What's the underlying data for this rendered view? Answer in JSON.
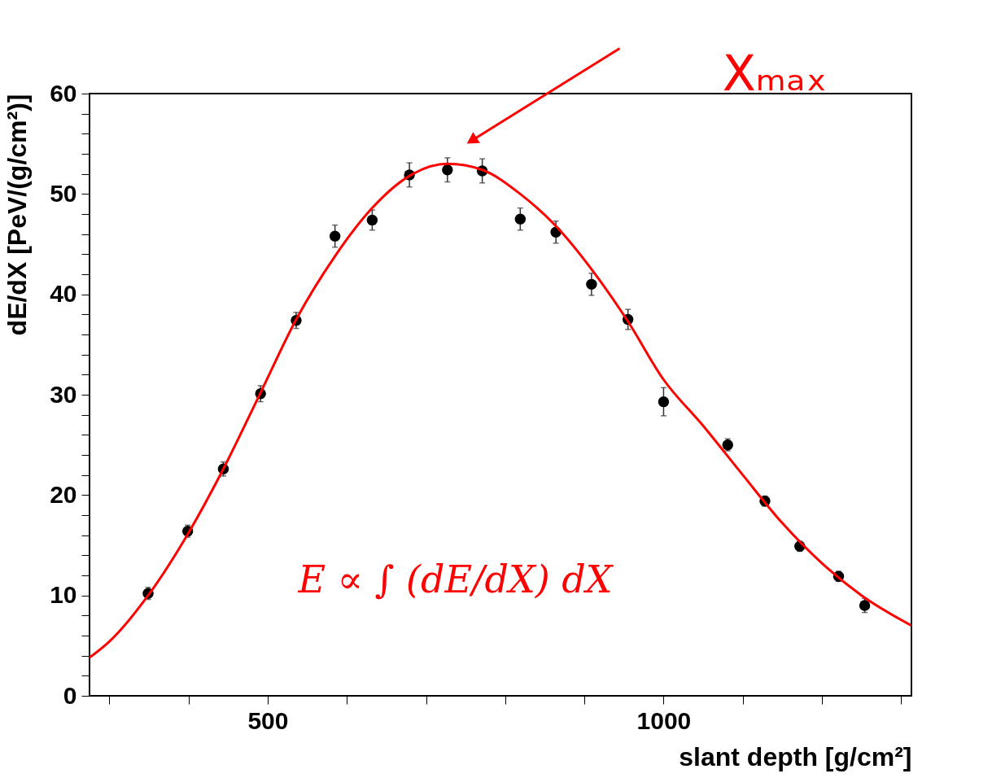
{
  "chart_data": {
    "type": "scatter",
    "xlabel": "slant depth [g/cm²]",
    "ylabel": "dE/dX [PeV/(g/cm²)]",
    "xlim": [
      275,
      1313
    ],
    "ylim": [
      0,
      60
    ],
    "xticks": [
      {
        "value": 300,
        "label": null
      },
      {
        "value": 400,
        "label": null
      },
      500,
      {
        "value": 600,
        "label": null
      },
      {
        "value": 700,
        "label": null
      },
      {
        "value": 800,
        "label": null
      },
      {
        "value": 900,
        "label": null
      },
      1000,
      {
        "value": 1100,
        "label": null
      },
      {
        "value": 1200,
        "label": null
      },
      {
        "value": 1300,
        "label": null
      }
    ],
    "yticks": [
      0,
      {
        "value": 2,
        "label": null
      },
      {
        "value": 4,
        "label": null
      },
      {
        "value": 6,
        "label": null
      },
      {
        "value": 8,
        "label": null
      },
      10,
      {
        "value": 12,
        "label": null
      },
      {
        "value": 14,
        "label": null
      },
      {
        "value": 16,
        "label": null
      },
      {
        "value": 18,
        "label": null
      },
      20,
      {
        "value": 22,
        "label": null
      },
      {
        "value": 24,
        "label": null
      },
      {
        "value": 26,
        "label": null
      },
      {
        "value": 28,
        "label": null
      },
      30,
      {
        "value": 32,
        "label": null
      },
      {
        "value": 34,
        "label": null
      },
      {
        "value": 36,
        "label": null
      },
      {
        "value": 38,
        "label": null
      },
      40,
      {
        "value": 42,
        "label": null
      },
      {
        "value": 44,
        "label": null
      },
      {
        "value": 46,
        "label": null
      },
      {
        "value": 48,
        "label": null
      },
      50,
      {
        "value": 52,
        "label": null
      },
      {
        "value": 54,
        "label": null
      },
      {
        "value": 56,
        "label": null
      },
      {
        "value": 58,
        "label": null
      },
      60
    ],
    "grid": false,
    "annotations": [
      "Xₘₐₓ",
      "E ∝ ∫ (dE/dX) dX"
    ],
    "series": [
      {
        "marker": "circle",
        "color": "#000000",
        "x": [
          349,
          399,
          444,
          491,
          536,
          585,
          632,
          679,
          727,
          771,
          819,
          864,
          909,
          955,
          1000,
          1081,
          1128,
          1172,
          1221,
          1254
        ],
        "values": [
          10.2,
          16.4,
          22.6,
          30.1,
          37.4,
          45.8,
          47.4,
          51.9,
          52.4,
          52.3,
          47.5,
          46.2,
          41.0,
          37.5,
          29.3,
          25.0,
          19.4,
          14.9,
          11.9,
          9.0
        ],
        "errors": [
          0.6,
          0.6,
          0.7,
          0.8,
          0.8,
          1.1,
          1.0,
          1.2,
          1.2,
          1.2,
          1.1,
          1.1,
          1.1,
          1.0,
          1.4,
          0.6,
          0.5,
          0.5,
          0.5,
          0.7
        ]
      },
      {
        "type": "line",
        "marker": "none",
        "color": "#ff0000",
        "x": [
          275,
          300,
          349,
          399,
          444,
          491,
          536,
          585,
          632,
          679,
          727,
          771,
          819,
          864,
          909,
          955,
          1000,
          1050,
          1100,
          1150,
          1200,
          1250,
          1313
        ],
        "values": [
          3.8,
          5.4,
          10.0,
          16.1,
          22.6,
          30.2,
          37.5,
          43.8,
          48.6,
          51.8,
          53.0,
          52.4,
          50.0,
          46.8,
          42.5,
          37.3,
          31.5,
          26.9,
          22.0,
          17.2,
          13.2,
          10.0,
          7.0
        ]
      }
    ]
  }
}
